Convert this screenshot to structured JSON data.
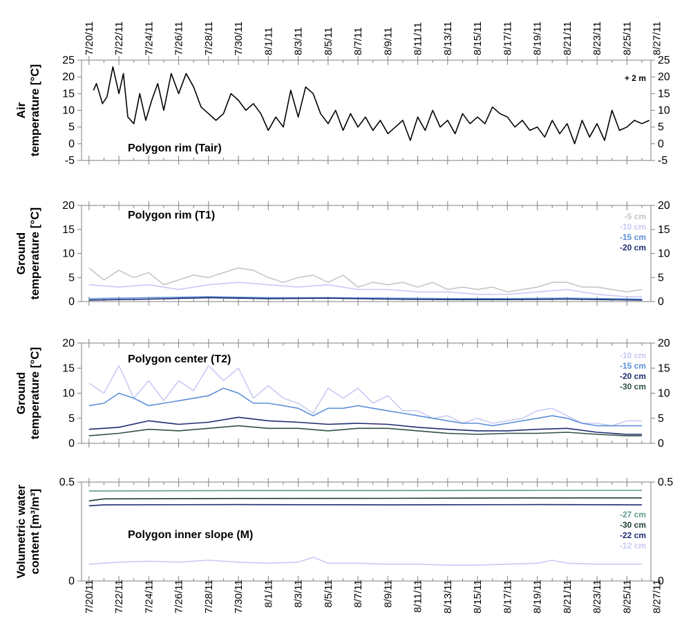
{
  "date_labels": [
    "7/20/11",
    "7/22/11",
    "7/24/11",
    "7/26/11",
    "7/28/11",
    "7/30/11",
    "8/1/11",
    "8/3/11",
    "8/5/11",
    "8/7/11",
    "8/9/11",
    "8/11/11",
    "8/13/11",
    "8/15/11",
    "8/17/11",
    "8/19/11",
    "8/21/11",
    "8/23/11",
    "8/25/11",
    "8/27/11"
  ],
  "chart_data": [
    {
      "type": "line",
      "title": "Polygon rim (Tair)",
      "ylabel": [
        "Air",
        "temperature [°C]"
      ],
      "ylim": [
        -5,
        25
      ],
      "yticks": [
        -5,
        0,
        5,
        10,
        15,
        20,
        25
      ],
      "legend_position": "top-right",
      "series": [
        {
          "name": "+ 2 m",
          "color": "#000000",
          "x": [
            0.3,
            0.5,
            0.9,
            1.2,
            1.6,
            2.0,
            2.3,
            2.6,
            3.0,
            3.4,
            3.8,
            4.2,
            4.6,
            5.0,
            5.5,
            6.0,
            6.5,
            7.0,
            7.5,
            8.0,
            8.5,
            9.0,
            9.5,
            10.0,
            10.5,
            11.0,
            11.5,
            12.0,
            12.5,
            13.0,
            13.5,
            14.0,
            14.5,
            15.0,
            15.5,
            16.0,
            16.5,
            17.0,
            17.5,
            18.0,
            18.5,
            19.0,
            19.5,
            20.0,
            20.5,
            21.0,
            21.5,
            22.0,
            22.5,
            23.0,
            23.5,
            24.0,
            24.5,
            25.0,
            25.5,
            26.0,
            26.5,
            27.0,
            27.5,
            28.0,
            28.5,
            29.0,
            29.5,
            30.0,
            30.5,
            31.0,
            31.5,
            32.0,
            32.5,
            33.0,
            33.5,
            34.0,
            34.5,
            35.0,
            35.5,
            36.0,
            36.5,
            37.0,
            37.5
          ],
          "y": [
            16,
            18,
            12,
            14,
            23,
            15,
            21,
            8,
            6,
            15,
            7,
            13,
            18,
            10,
            21,
            15,
            21,
            17,
            11,
            9,
            7,
            9,
            15,
            13,
            10,
            12,
            9,
            4,
            8,
            5,
            16,
            8,
            17,
            15,
            9,
            6,
            10,
            4,
            9,
            5,
            8,
            4,
            7,
            3,
            5,
            7,
            1,
            8,
            4,
            10,
            5,
            7,
            3,
            9,
            6,
            8,
            6,
            11,
            9,
            8,
            5,
            7,
            4,
            5,
            2,
            7,
            3,
            6,
            0,
            7,
            2,
            6,
            1,
            10,
            4,
            5,
            7,
            6,
            7
          ]
        }
      ]
    },
    {
      "type": "line",
      "title": "Polygon rim (T1)",
      "ylabel": [
        "Ground",
        "temperature [°C]"
      ],
      "ylim": [
        0,
        20
      ],
      "yticks": [
        0,
        5,
        10,
        15,
        20
      ],
      "legend_position": "top-right",
      "series": [
        {
          "name": "-5 cm",
          "color": "#c6c6c6",
          "x": [
            0,
            1,
            2,
            3,
            4,
            5,
            6,
            7,
            8,
            9,
            10,
            11,
            12,
            13,
            14,
            15,
            16,
            17,
            18,
            19,
            20,
            21,
            22,
            23,
            24,
            25,
            26,
            27,
            28,
            29,
            30,
            31,
            32,
            33,
            34,
            35,
            36,
            37
          ],
          "y": [
            7,
            4.5,
            6.5,
            5,
            6,
            3.5,
            4.5,
            5.5,
            5,
            6,
            7,
            6.5,
            5,
            4,
            5,
            5.5,
            4,
            5.5,
            3,
            4,
            3.5,
            4,
            3,
            4,
            2.5,
            3,
            2.5,
            3,
            2,
            2.5,
            3,
            4,
            4,
            3,
            3,
            2.5,
            2,
            2.5
          ]
        },
        {
          "name": "-10 cm",
          "color": "#c9caf4",
          "x": [
            0,
            2,
            4,
            6,
            8,
            10,
            12,
            14,
            16,
            18,
            20,
            22,
            24,
            26,
            28,
            30,
            32,
            34,
            36,
            37
          ],
          "y": [
            3.5,
            3,
            3.5,
            2.5,
            3.5,
            4,
            3.5,
            3,
            3.5,
            2.5,
            2.5,
            2,
            2,
            1.5,
            1.5,
            2,
            2.5,
            1.5,
            1,
            1
          ]
        },
        {
          "name": "-15 cm",
          "color": "#5b8fd8",
          "x": [
            0,
            4,
            8,
            12,
            16,
            20,
            24,
            28,
            32,
            37
          ],
          "y": [
            0.6,
            0.8,
            1.0,
            0.8,
            0.8,
            0.7,
            0.6,
            0.6,
            0.7,
            0.5
          ]
        },
        {
          "name": "-20 cm",
          "color": "#1f2a6e",
          "x": [
            0,
            4,
            8,
            12,
            16,
            20,
            24,
            28,
            32,
            37
          ],
          "y": [
            0.3,
            0.5,
            0.8,
            0.6,
            0.7,
            0.5,
            0.4,
            0.4,
            0.5,
            0.3
          ]
        }
      ]
    },
    {
      "type": "line",
      "title": "Polygon center (T2)",
      "ylabel": [
        "Ground",
        "temperature [°C]"
      ],
      "ylim": [
        0,
        20
      ],
      "yticks": [
        0,
        5,
        10,
        15,
        20
      ],
      "legend_position": "top-right",
      "series": [
        {
          "name": "-10 cm",
          "color": "#c9caf4",
          "x": [
            0,
            1,
            2,
            3,
            4,
            5,
            6,
            7,
            8,
            9,
            10,
            11,
            12,
            13,
            14,
            15,
            16,
            17,
            18,
            19,
            20,
            21,
            22,
            23,
            24,
            25,
            26,
            27,
            28,
            29,
            30,
            31,
            32,
            33,
            34,
            35,
            36,
            37
          ],
          "y": [
            12,
            10,
            15.5,
            9,
            12.5,
            8.5,
            12.5,
            10.5,
            15.5,
            12.5,
            15,
            9,
            11.5,
            9,
            8,
            6,
            11,
            9,
            11,
            8,
            9.5,
            6.5,
            6.5,
            5,
            5.5,
            4,
            5,
            4,
            4.5,
            5,
            6.5,
            7,
            5.5,
            4,
            4,
            3.5,
            4.5,
            4.5
          ]
        },
        {
          "name": "-15 cm",
          "color": "#5b8fd8",
          "x": [
            0,
            1,
            2,
            3,
            4,
            5,
            6,
            7,
            8,
            9,
            10,
            11,
            12,
            13,
            14,
            15,
            16,
            17,
            18,
            19,
            20,
            21,
            22,
            23,
            24,
            25,
            26,
            27,
            28,
            29,
            30,
            31,
            32,
            33,
            34,
            35,
            36,
            37
          ],
          "y": [
            7.5,
            8,
            10,
            9,
            7.5,
            8,
            8.5,
            9,
            9.5,
            11,
            10,
            8,
            8,
            7.5,
            7,
            5.5,
            7,
            7,
            7.5,
            7,
            6.5,
            6,
            5.5,
            5,
            4.5,
            4,
            4,
            3.5,
            4,
            4.5,
            5,
            5.5,
            5,
            4,
            3.5,
            3.5,
            3.5,
            3.5
          ]
        },
        {
          "name": "-20 cm",
          "color": "#1f2a6e",
          "x": [
            0,
            2,
            4,
            6,
            8,
            10,
            12,
            14,
            16,
            18,
            20,
            22,
            24,
            26,
            28,
            30,
            32,
            34,
            36,
            37
          ],
          "y": [
            2.8,
            3.2,
            4.5,
            3.8,
            4.2,
            5.2,
            4.5,
            4.2,
            3.8,
            4,
            3.8,
            3.2,
            2.8,
            2.5,
            2.5,
            2.8,
            3,
            2.2,
            1.8,
            1.8
          ]
        },
        {
          "name": "-30 cm",
          "color": "#2f4f45",
          "x": [
            0,
            2,
            4,
            6,
            8,
            10,
            12,
            14,
            16,
            18,
            20,
            22,
            24,
            26,
            28,
            30,
            32,
            34,
            36,
            37
          ],
          "y": [
            1.5,
            2,
            2.8,
            2.5,
            3,
            3.5,
            3,
            3,
            2.5,
            3,
            3,
            2.5,
            2,
            1.8,
            2,
            2,
            2.2,
            1.8,
            1.5,
            1.5
          ]
        }
      ]
    },
    {
      "type": "line",
      "title": "Polygon inner slope (M)",
      "ylabel": [
        "Volumetric water",
        "content [m³/m³]"
      ],
      "ylim": [
        0,
        0.5
      ],
      "yticks": [
        0,
        0.5
      ],
      "legend_position": "right",
      "series": [
        {
          "name": "-27 cm",
          "color": "#5f9a8e",
          "x": [
            0,
            10,
            20,
            30,
            37
          ],
          "y": [
            0.455,
            0.457,
            0.457,
            0.458,
            0.458
          ]
        },
        {
          "name": "-30 cm",
          "color": "#1e3b35",
          "x": [
            0,
            1,
            10,
            20,
            30,
            37
          ],
          "y": [
            0.405,
            0.415,
            0.417,
            0.418,
            0.42,
            0.42
          ]
        },
        {
          "name": "-22 cm",
          "color": "#1f2a6e",
          "x": [
            0,
            1,
            10,
            20,
            30,
            37
          ],
          "y": [
            0.38,
            0.385,
            0.386,
            0.385,
            0.386,
            0.385
          ]
        },
        {
          "name": "-12 cm",
          "color": "#c9caf4",
          "x": [
            0,
            1,
            2,
            4,
            6,
            8,
            10,
            12,
            14,
            15,
            16,
            18,
            20,
            22,
            24,
            26,
            28,
            30,
            31,
            32,
            34,
            36,
            37
          ],
          "y": [
            0.085,
            0.09,
            0.095,
            0.1,
            0.095,
            0.105,
            0.095,
            0.09,
            0.095,
            0.12,
            0.09,
            0.09,
            0.085,
            0.085,
            0.08,
            0.08,
            0.085,
            0.09,
            0.105,
            0.09,
            0.085,
            0.085,
            0.085
          ]
        }
      ]
    }
  ]
}
